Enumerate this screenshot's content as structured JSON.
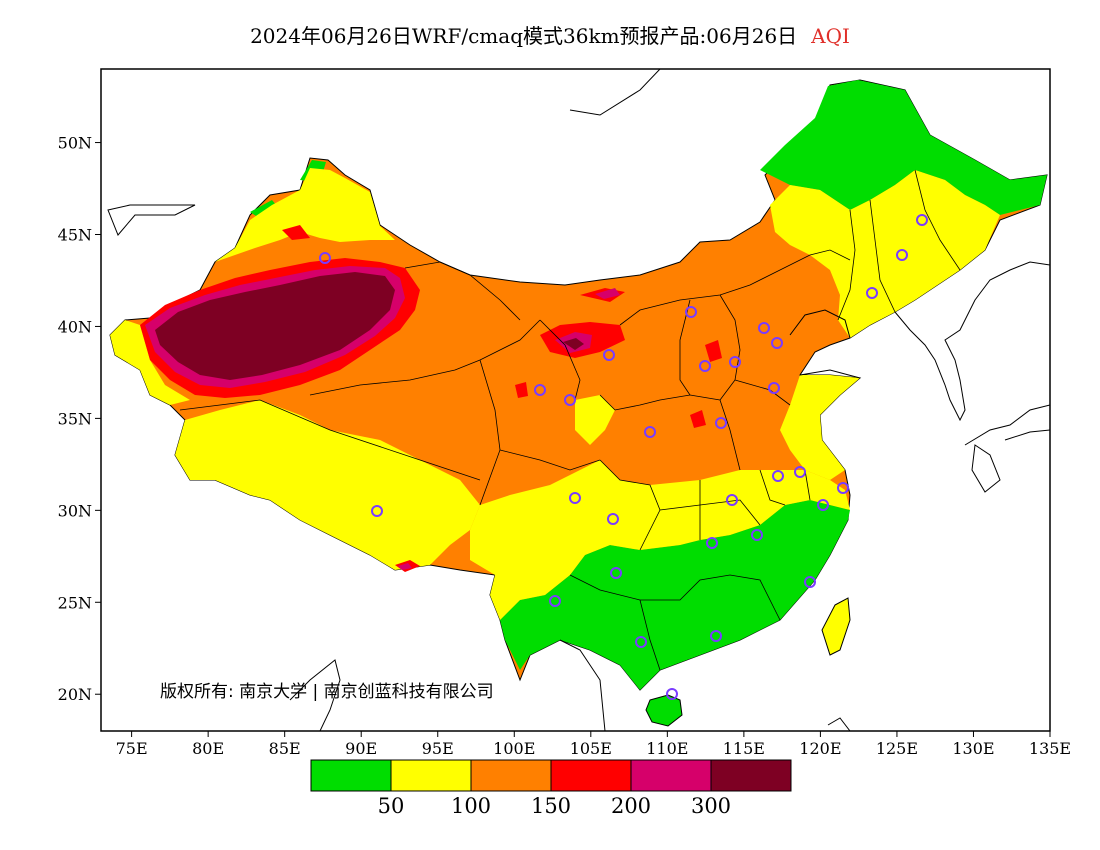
{
  "title": {
    "main": "2024年06月26日WRF/cmaq模式36km预报产品:06月26日",
    "variable": "AQI"
  },
  "map": {
    "lon_range": [
      73,
      135
    ],
    "lat_range": [
      18,
      54
    ],
    "x_ticks": [
      "75E",
      "80E",
      "85E",
      "90E",
      "95E",
      "100E",
      "105E",
      "110E",
      "115E",
      "120E",
      "125E",
      "130E",
      "135E"
    ],
    "y_ticks": [
      "20N",
      "25N",
      "30N",
      "35N",
      "40N",
      "45N",
      "50N"
    ],
    "copyright": "版权所有: 南京大学 | 南京创蓝科技有限公司"
  },
  "legend": {
    "colors": [
      "#00dd00",
      "#ffff00",
      "#ff8000",
      "#ff0000",
      "#d6006a",
      "#7e0023"
    ],
    "labels": [
      "50",
      "100",
      "150",
      "200",
      "300"
    ]
  }
}
